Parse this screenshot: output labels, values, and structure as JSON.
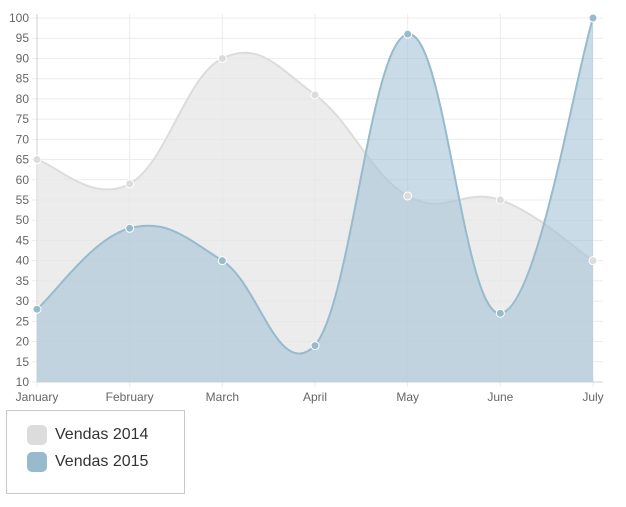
{
  "chart_data": {
    "type": "area",
    "categories": [
      "January",
      "February",
      "March",
      "April",
      "May",
      "June",
      "July"
    ],
    "ylim": [
      10,
      100
    ],
    "yticks": [
      10,
      15,
      20,
      25,
      30,
      35,
      40,
      45,
      50,
      55,
      60,
      65,
      70,
      75,
      80,
      85,
      90,
      95,
      100
    ],
    "grid": true,
    "smooth": true,
    "legend_position": "bottom-left",
    "series": [
      {
        "name": "Vendas 2014",
        "values": [
          65,
          59,
          90,
          81,
          56,
          55,
          40
        ],
        "fill": "#e6e6e6",
        "stroke": "#dcdcdc",
        "point": "#dcdcdc"
      },
      {
        "name": "Vendas 2015",
        "values": [
          28,
          48,
          40,
          19,
          96,
          27,
          100
        ],
        "fill": "#a3c3d5",
        "stroke": "#97bbcd",
        "point": "#97bbcd"
      }
    ]
  },
  "legend": {
    "items": [
      {
        "label": "Vendas 2014",
        "color": "#dcdcdc"
      },
      {
        "label": "Vendas 2015",
        "color": "#97bbcd"
      }
    ]
  }
}
